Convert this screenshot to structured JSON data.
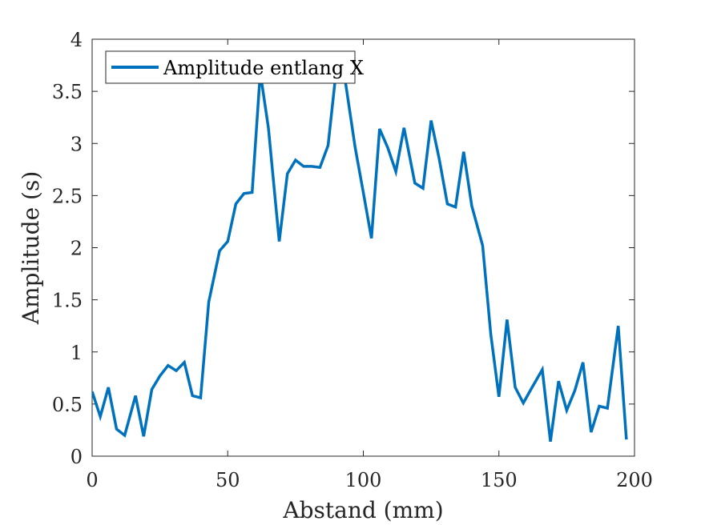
{
  "chart_data": {
    "type": "line",
    "title": "",
    "xlabel": "Abstand (mm)",
    "ylabel": "Amplitude (s)",
    "xlim": [
      0,
      200
    ],
    "ylim": [
      0,
      4
    ],
    "xticks": [
      0,
      50,
      100,
      150,
      200
    ],
    "yticks": [
      0,
      0.5,
      1,
      1.5,
      2,
      2.5,
      3,
      3.5,
      4
    ],
    "xtick_labels": [
      "0",
      "50",
      "100",
      "150",
      "200"
    ],
    "ytick_labels": [
      "0",
      "0.5",
      "1",
      "1.5",
      "2",
      "2.5",
      "3",
      "3.5",
      "4"
    ],
    "grid": false,
    "legend_position": "top-left",
    "line_color": "#0072BD",
    "series": [
      {
        "name": "Amplitude entlang X",
        "x": [
          0,
          3,
          6,
          9,
          12,
          16,
          19,
          22,
          25,
          28,
          31,
          34,
          37,
          40,
          43,
          47,
          50,
          53,
          56,
          59,
          62,
          65,
          69,
          72,
          75,
          78,
          81,
          84,
          87,
          90,
          93,
          97,
          100,
          103,
          106,
          109,
          112,
          115,
          119,
          122,
          125,
          128,
          131,
          134,
          137,
          140,
          144,
          147,
          150,
          153,
          156,
          159,
          162,
          166,
          169,
          172,
          175,
          178,
          181,
          184,
          187,
          190,
          194,
          197
        ],
        "y": [
          0.62,
          0.38,
          0.66,
          0.26,
          0.2,
          0.58,
          0.19,
          0.64,
          0.77,
          0.87,
          0.82,
          0.9,
          0.58,
          0.56,
          1.48,
          1.97,
          2.06,
          2.42,
          2.52,
          2.53,
          3.68,
          3.15,
          2.06,
          2.71,
          2.84,
          2.78,
          2.78,
          2.77,
          2.98,
          3.7,
          3.66,
          2.96,
          2.53,
          2.09,
          3.14,
          2.96,
          2.73,
          3.15,
          2.62,
          2.57,
          3.22,
          2.85,
          2.42,
          2.39,
          2.92,
          2.4,
          2.02,
          1.17,
          0.57,
          1.31,
          0.66,
          0.51,
          0.65,
          0.83,
          0.14,
          0.72,
          0.44,
          0.63,
          0.9,
          0.23,
          0.48,
          0.46,
          1.25,
          0.16
        ]
      }
    ]
  }
}
